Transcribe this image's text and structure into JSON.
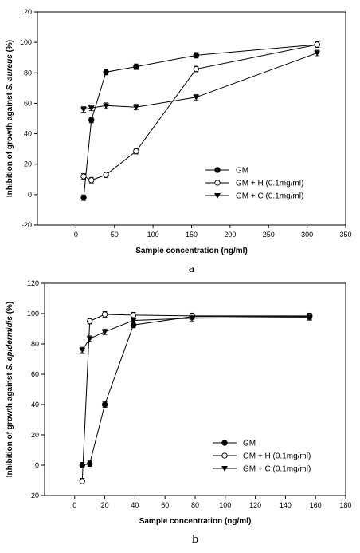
{
  "chart_data": [
    {
      "type": "line",
      "panel_label": "a",
      "xlabel": "Sample concentration (ng/ml)",
      "ylabel": "Inhibition of growth against S. aureus (%)",
      "ylabel_parts": [
        "Inhibition of growth against ",
        "S. aureus",
        " (%)"
      ],
      "xlim": [
        -50,
        350
      ],
      "ylim": [
        -20,
        120
      ],
      "xticks": [
        0,
        50,
        100,
        150,
        200,
        250,
        300,
        350
      ],
      "yticks": [
        -20,
        0,
        20,
        40,
        60,
        80,
        100,
        120
      ],
      "legend_position": "bottom-right",
      "series": [
        {
          "name": "GM",
          "marker": "circle-filled",
          "x": [
            10,
            20,
            39,
            78,
            156,
            313
          ],
          "y": [
            -2,
            49,
            80.5,
            84,
            91.5,
            98.5
          ]
        },
        {
          "name": "GM + H (0.1mg/ml)",
          "marker": "circle-open",
          "x": [
            10,
            20,
            39,
            78,
            156,
            313
          ],
          "y": [
            12,
            9.5,
            13,
            28.5,
            82.5,
            98.5
          ]
        },
        {
          "name": "GM + C (0.1mg/ml)",
          "marker": "triangle-down-filled",
          "x": [
            10,
            20,
            39,
            78,
            156,
            313
          ],
          "y": [
            56,
            57,
            58.5,
            57.5,
            64,
            93
          ]
        }
      ]
    },
    {
      "type": "line",
      "panel_label": "b",
      "xlabel": "Sample concentration (ng/ml)",
      "ylabel": "Inhibition of growth against S. epidermidis (%)",
      "ylabel_parts": [
        "Inhibition of growth against ",
        "S. epidermidis",
        " (%)"
      ],
      "xlim": [
        -20,
        180
      ],
      "ylim": [
        -20,
        120
      ],
      "xticks": [
        0,
        20,
        40,
        60,
        80,
        100,
        120,
        140,
        160,
        180
      ],
      "yticks": [
        -20,
        0,
        20,
        40,
        60,
        80,
        100,
        120
      ],
      "legend_position": "bottom-right",
      "series": [
        {
          "name": "GM",
          "marker": "circle-filled",
          "x": [
            5,
            10,
            20,
            39,
            78,
            156
          ],
          "y": [
            0,
            1,
            40,
            92.5,
            98,
            98
          ]
        },
        {
          "name": "GM + H (0.1mg/ml)",
          "marker": "circle-open",
          "x": [
            5,
            10,
            20,
            39,
            78,
            156
          ],
          "y": [
            -10.5,
            95,
            99.5,
            99,
            98.5,
            98.5
          ]
        },
        {
          "name": "GM + C (0.1mg/ml)",
          "marker": "triangle-down-filled",
          "x": [
            5,
            10,
            20,
            39,
            78,
            156
          ],
          "y": [
            76,
            83.5,
            88,
            95.5,
            97,
            97.5
          ]
        }
      ]
    }
  ]
}
